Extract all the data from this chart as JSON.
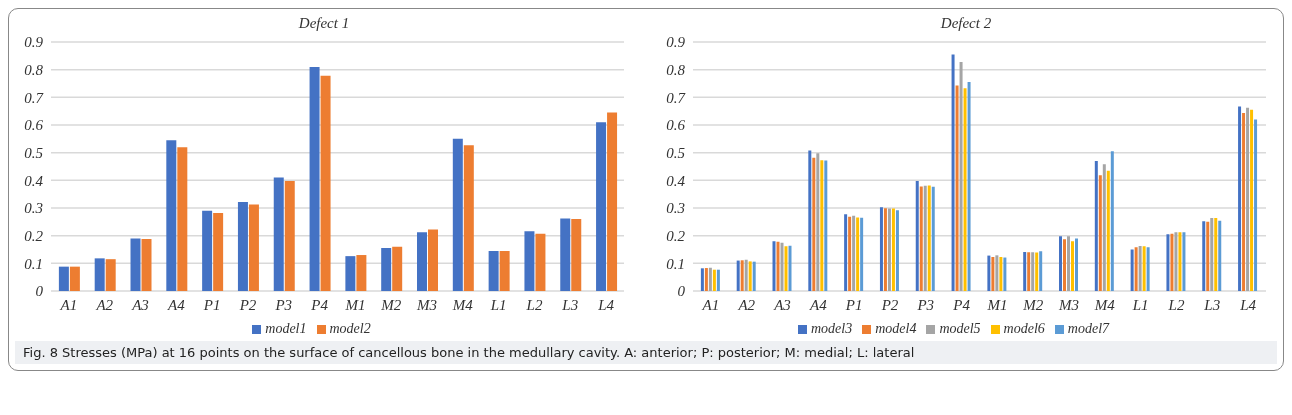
{
  "chart_data": [
    {
      "type": "bar",
      "title": "Defect 1",
      "categories": [
        "A1",
        "A2",
        "A3",
        "A4",
        "P1",
        "P2",
        "P3",
        "P4",
        "M1",
        "M2",
        "M3",
        "M4",
        "L1",
        "L2",
        "L3",
        "L4"
      ],
      "series": [
        {
          "name": "model1",
          "color": "#4472c4",
          "values": [
            0.088,
            0.118,
            0.19,
            0.545,
            0.29,
            0.322,
            0.41,
            0.81,
            0.126,
            0.155,
            0.212,
            0.55,
            0.145,
            0.216,
            0.262,
            0.61
          ]
        },
        {
          "name": "model2",
          "color": "#ed7d31",
          "values": [
            0.088,
            0.115,
            0.188,
            0.52,
            0.282,
            0.313,
            0.398,
            0.778,
            0.13,
            0.16,
            0.222,
            0.527,
            0.145,
            0.207,
            0.26,
            0.645
          ]
        }
      ],
      "ylim": [
        0,
        0.9
      ],
      "yticks": [
        0,
        0.1,
        0.2,
        0.3,
        0.4,
        0.5,
        0.6,
        0.7,
        0.8,
        0.9
      ],
      "grid": "y",
      "legend": "bottom",
      "annotations": [
        "Fig. 8 Stresses (MPa) at 16 points on the surface of cancellous bone in the medullary cavity. A: anterior; P: posterior; M: medial; L: lateral"
      ]
    },
    {
      "type": "bar",
      "title": "Defect 2",
      "categories": [
        "A1",
        "A2",
        "A3",
        "A4",
        "P1",
        "P2",
        "P3",
        "P4",
        "M1",
        "M2",
        "M3",
        "M4",
        "L1",
        "L2",
        "L3",
        "L4"
      ],
      "series": [
        {
          "name": "model3",
          "color": "#4472c4",
          "values": [
            0.082,
            0.11,
            0.18,
            0.508,
            0.277,
            0.303,
            0.398,
            0.855,
            0.128,
            0.141,
            0.198,
            0.47,
            0.15,
            0.205,
            0.252,
            0.667
          ]
        },
        {
          "name": "model4",
          "color": "#ed7d31",
          "values": [
            0.083,
            0.111,
            0.178,
            0.482,
            0.268,
            0.299,
            0.378,
            0.743,
            0.123,
            0.14,
            0.187,
            0.418,
            0.158,
            0.207,
            0.25,
            0.643
          ]
        },
        {
          "name": "model5",
          "color": "#a5a5a5",
          "values": [
            0.084,
            0.113,
            0.174,
            0.498,
            0.272,
            0.298,
            0.38,
            0.828,
            0.129,
            0.14,
            0.198,
            0.458,
            0.163,
            0.212,
            0.264,
            0.662
          ]
        },
        {
          "name": "model6",
          "color": "#ffc000",
          "values": [
            0.077,
            0.107,
            0.162,
            0.473,
            0.266,
            0.298,
            0.381,
            0.733,
            0.123,
            0.139,
            0.18,
            0.435,
            0.162,
            0.212,
            0.264,
            0.655
          ]
        },
        {
          "name": "model7",
          "color": "#5b9bd5",
          "values": [
            0.077,
            0.106,
            0.164,
            0.472,
            0.265,
            0.292,
            0.377,
            0.755,
            0.121,
            0.144,
            0.19,
            0.505,
            0.158,
            0.212,
            0.254,
            0.62
          ]
        }
      ],
      "ylim": [
        0,
        0.9
      ],
      "yticks": [
        0,
        0.1,
        0.2,
        0.3,
        0.4,
        0.5,
        0.6,
        0.7,
        0.8,
        0.9
      ],
      "grid": "y",
      "legend": "bottom"
    }
  ]
}
